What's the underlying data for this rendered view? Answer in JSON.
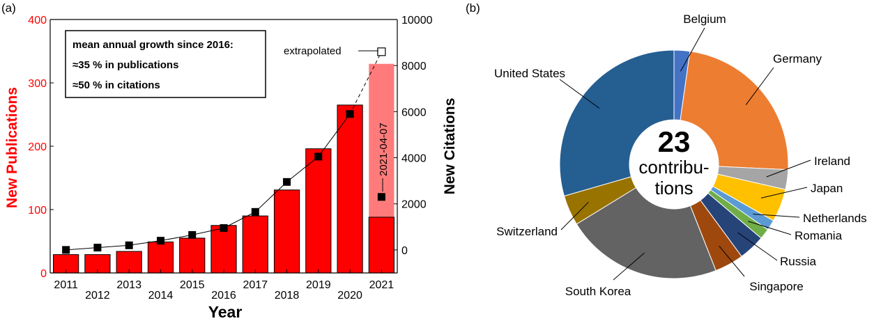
{
  "panel_a_label": "(a)",
  "panel_b_label": "(b)",
  "chart_data": [
    {
      "type": "bar",
      "categories": [
        "2011",
        "2012",
        "2013",
        "2014",
        "2015",
        "2016",
        "2017",
        "2018",
        "2019",
        "2020",
        "2021"
      ],
      "xlabel": "Year",
      "ylabel": "New Publications",
      "ylim": [
        0,
        400
      ],
      "yticks": [
        0,
        100,
        200,
        300,
        400
      ],
      "y2label": "New Citations",
      "y2lim": [
        -1000,
        10000
      ],
      "y2ticks": [
        0,
        2000,
        4000,
        6000,
        8000,
        10000
      ],
      "series": [
        {
          "name": "",
          "type": "bar",
          "axis": "left",
          "color": "#ff0000",
          "values": [
            29,
            29,
            34,
            49,
            55,
            75,
            90,
            131,
            196,
            265,
            88
          ]
        },
        {
          "name": "",
          "type": "bar",
          "axis": "left",
          "color": "#ff7b7b",
          "values": [
            null,
            null,
            null,
            null,
            null,
            null,
            null,
            null,
            null,
            null,
            330
          ]
        },
        {
          "name": "",
          "type": "line",
          "axis": "right",
          "color": "#000000",
          "values": [
            0,
            100,
            200,
            400,
            650,
            950,
            1650,
            2950,
            4050,
            5900,
            2300
          ]
        },
        {
          "name": "",
          "type": "line",
          "axis": "right",
          "dashed": true,
          "color": "#000000",
          "x": [
            "2020",
            "2021"
          ],
          "values": [
            5900,
            8600
          ]
        }
      ],
      "textbox": [
        "mean annual growth since 2016:",
        "≈35 % in publications",
        "≈50 % in citations"
      ],
      "annotations": {
        "extrapolated": "extrapolated",
        "date": "2021-04-07"
      },
      "grid": false
    },
    {
      "type": "pie",
      "style": "donut",
      "center_text": {
        "number": "23",
        "line1": "contribu-",
        "line2": "tions"
      },
      "labels": [
        "Belgium",
        "Germany",
        "Ireland",
        "Japan",
        "Netherlands",
        "Romania",
        "Russia",
        "Singapore",
        "South Korea",
        "Switzerland",
        "United States"
      ],
      "values": [
        1.2,
        12.6,
        1.5,
        2.5,
        0.8,
        0.8,
        2.0,
        2.2,
        11.9,
        2.3,
        15.8
      ],
      "colors": [
        "#4472c4",
        "#ed7d31",
        "#a5a5a5",
        "#ffc000",
        "#5b9bd5",
        "#70ad47",
        "#264478",
        "#9e480e",
        "#636363",
        "#997300",
        "#255e91"
      ]
    }
  ]
}
